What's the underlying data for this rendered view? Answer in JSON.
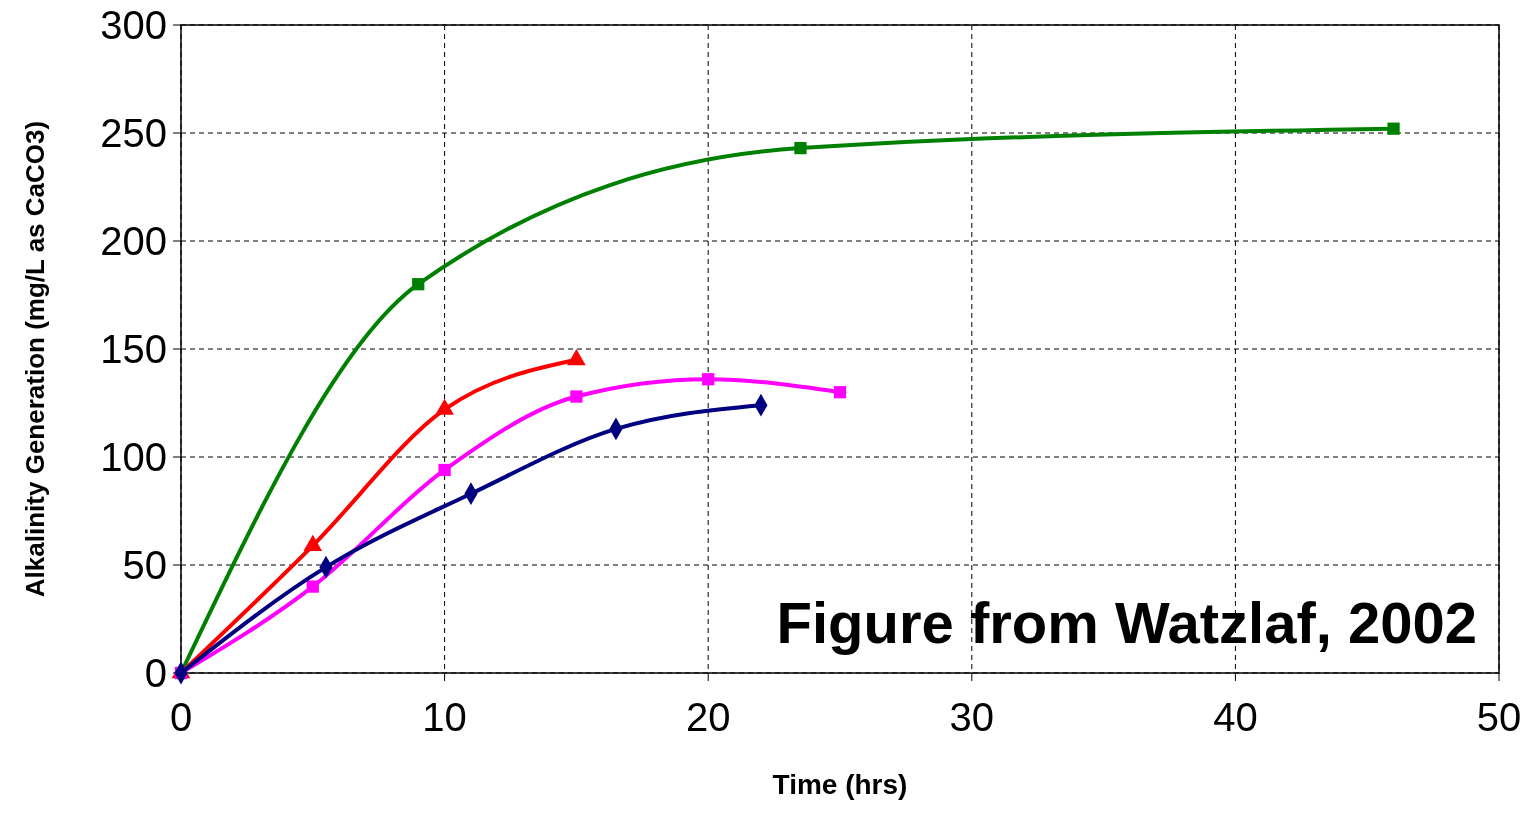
{
  "chart_data": {
    "type": "line",
    "xlabel": "Time (hrs)",
    "ylabel": "Alkalinity Generation (mg/L as CaCO3)",
    "xlim": [
      0,
      50
    ],
    "xticks": [
      0,
      10,
      20,
      30,
      40,
      50
    ],
    "ylim": [
      0,
      300
    ],
    "yticks": [
      0,
      50,
      100,
      150,
      200,
      250,
      300
    ],
    "grid": true,
    "line_style": "solid",
    "series": [
      {
        "color": "#008000",
        "marker": "square",
        "x": [
          0,
          9,
          23.5,
          46
        ],
        "values": [
          0,
          180,
          243,
          252
        ]
      },
      {
        "color": "#ff0000",
        "marker": "triangle",
        "x": [
          0,
          5,
          10,
          15
        ],
        "values": [
          0,
          59,
          122,
          145
        ]
      },
      {
        "color": "#ff00ff",
        "marker": "square",
        "x": [
          0,
          5,
          10,
          15,
          20,
          25
        ],
        "values": [
          0,
          40,
          94,
          128,
          136,
          130
        ]
      },
      {
        "color": "#000080",
        "marker": "diamond",
        "x": [
          0,
          5.5,
          11,
          16.5,
          22
        ],
        "values": [
          0,
          49,
          83,
          113,
          124
        ]
      }
    ],
    "annotations": [
      "Figure from Watzlaf, 2002"
    ]
  }
}
